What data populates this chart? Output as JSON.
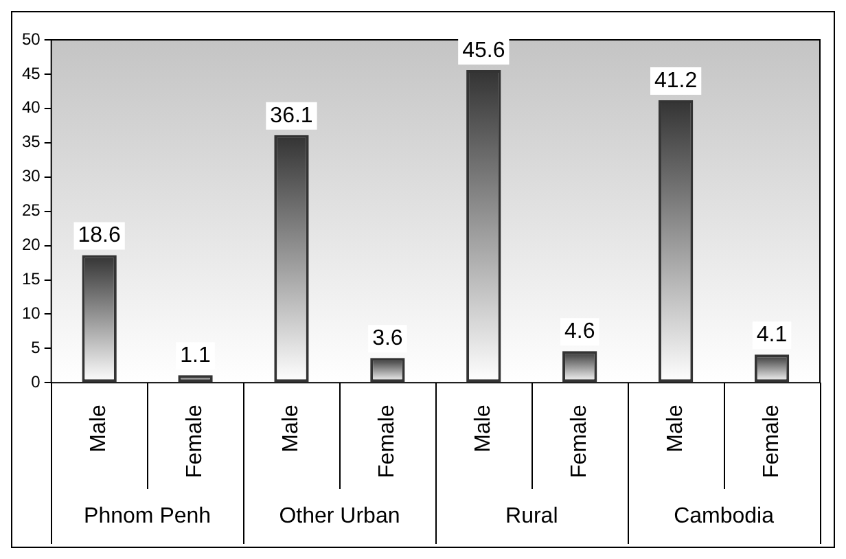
{
  "chart_data": {
    "type": "bar",
    "categories": [
      "Male",
      "Female",
      "Male",
      "Female",
      "Male",
      "Female",
      "Male",
      "Female"
    ],
    "values": [
      18.6,
      1.1,
      36.1,
      3.6,
      45.6,
      4.6,
      41.2,
      4.1
    ],
    "color": "#333333",
    "ylim": [
      0,
      50
    ],
    "yticks": [
      0,
      5,
      10,
      15,
      20,
      25,
      30,
      35,
      40,
      45,
      50
    ],
    "data_labels": true,
    "annotations": [
      "Phnom Penh",
      "Other Urban",
      "Rural",
      "Cambodia"
    ]
  }
}
